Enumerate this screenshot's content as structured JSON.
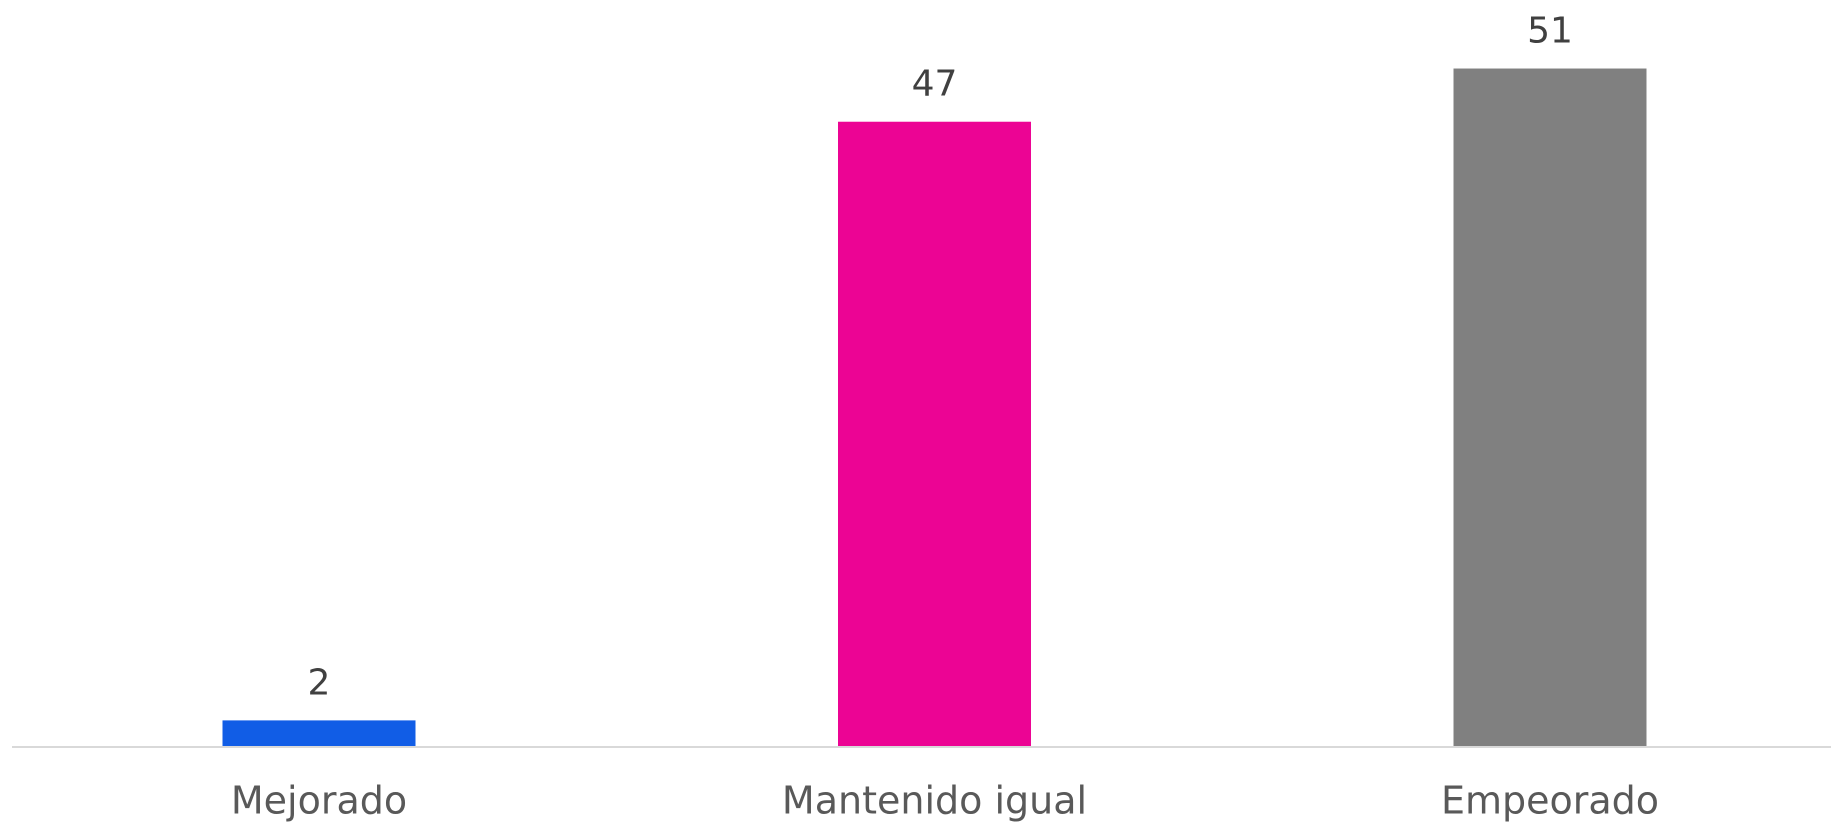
{
  "chart_data": {
    "type": "bar",
    "categories": [
      "Mejorado",
      "Mantenido igual",
      "Empeorado"
    ],
    "values": [
      2,
      47,
      51
    ],
    "colors": [
      "#115de6",
      "#ec0494",
      "#808080"
    ],
    "ylim": [
      0,
      56
    ]
  }
}
